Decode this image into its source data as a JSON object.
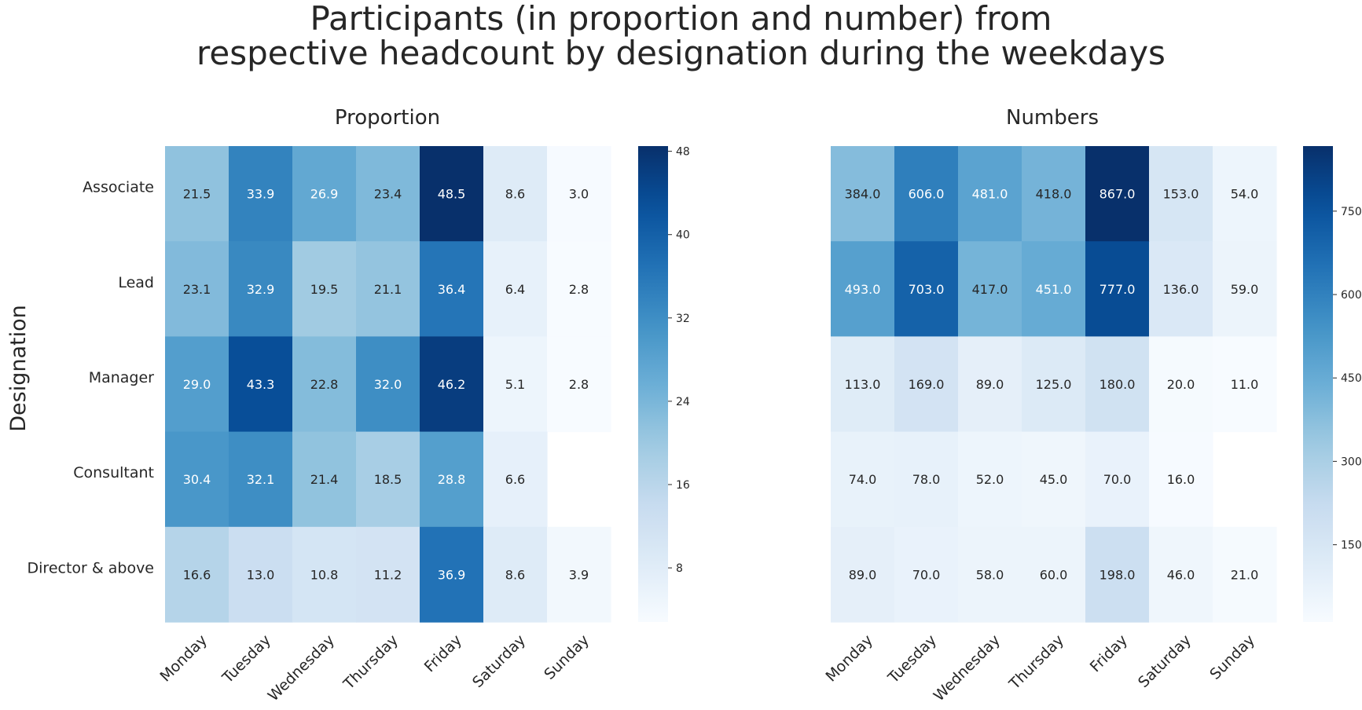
{
  "title": "Participants (in proportion and number) from\nrespective headcount by designation during the weekdays",
  "colors": {
    "low": "#f7fbff",
    "high": "#08306b",
    "text_dark": "#262626",
    "text_light": "#ffffff"
  },
  "chart_data": [
    {
      "type": "heatmap",
      "title": "Proportion",
      "ylabel": "Designation",
      "xlabel": "",
      "x_categories": [
        "Monday",
        "Tuesday",
        "Wednesday",
        "Thursday",
        "Friday",
        "Saturday",
        "Sunday"
      ],
      "y_categories": [
        "Associate",
        "Lead",
        "Manager",
        "Consultant",
        "Director & above"
      ],
      "values": [
        [
          21.5,
          33.9,
          26.9,
          23.4,
          48.5,
          8.6,
          3.0
        ],
        [
          23.1,
          32.9,
          19.5,
          21.1,
          36.4,
          6.4,
          2.8
        ],
        [
          29.0,
          43.3,
          22.8,
          32.0,
          46.2,
          5.1,
          2.8
        ],
        [
          30.4,
          32.1,
          21.4,
          18.5,
          28.8,
          6.6,
          null
        ],
        [
          16.6,
          13.0,
          10.8,
          11.2,
          36.9,
          8.6,
          3.9
        ]
      ],
      "labels": [
        [
          "21.5",
          "33.9",
          "26.9",
          "23.4",
          "48.5",
          "8.6",
          "3.0"
        ],
        [
          "23.1",
          "32.9",
          "19.5",
          "21.1",
          "36.4",
          "6.4",
          "2.8"
        ],
        [
          "29.0",
          "43.3",
          "22.8",
          "32.0",
          "46.2",
          "5.1",
          "2.8"
        ],
        [
          "30.4",
          "32.1",
          "21.4",
          "18.5",
          "28.8",
          "6.6",
          ""
        ],
        [
          "16.6",
          "13.0",
          "10.8",
          "11.2",
          "36.9",
          "8.6",
          "3.9"
        ]
      ],
      "colorbar": {
        "vmin": 2.8,
        "vmax": 48.5,
        "ticks": [
          8,
          16,
          24,
          32,
          40,
          48
        ],
        "tick_labels": [
          "8",
          "16",
          "24",
          "32",
          "40",
          "48"
        ]
      },
      "colormap": "Blues"
    },
    {
      "type": "heatmap",
      "title": "Numbers",
      "ylabel": "",
      "xlabel": "",
      "x_categories": [
        "Monday",
        "Tuesday",
        "Wednesday",
        "Thursday",
        "Friday",
        "Saturday",
        "Sunday"
      ],
      "y_categories": [
        "Associate",
        "Lead",
        "Manager",
        "Consultant",
        "Director & above"
      ],
      "values": [
        [
          384.0,
          606.0,
          481.0,
          418.0,
          867.0,
          153.0,
          54.0
        ],
        [
          493.0,
          703.0,
          417.0,
          451.0,
          777.0,
          136.0,
          59.0
        ],
        [
          113.0,
          169.0,
          89.0,
          125.0,
          180.0,
          20.0,
          11.0
        ],
        [
          74.0,
          78.0,
          52.0,
          45.0,
          70.0,
          16.0,
          null
        ],
        [
          89.0,
          70.0,
          58.0,
          60.0,
          198.0,
          46.0,
          21.0
        ]
      ],
      "labels": [
        [
          "384.0",
          "606.0",
          "481.0",
          "418.0",
          "867.0",
          "153.0",
          "54.0"
        ],
        [
          "493.0",
          "703.0",
          "417.0",
          "451.0",
          "777.0",
          "136.0",
          "59.0"
        ],
        [
          "113.0",
          "169.0",
          "89.0",
          "125.0",
          "180.0",
          "20.0",
          "11.0"
        ],
        [
          "74.0",
          "78.0",
          "52.0",
          "45.0",
          "70.0",
          "16.0",
          ""
        ],
        [
          "89.0",
          "70.0",
          "58.0",
          "60.0",
          "198.0",
          "46.0",
          "21.0"
        ]
      ],
      "colorbar": {
        "vmin": 11.0,
        "vmax": 867.0,
        "ticks": [
          150,
          300,
          450,
          600,
          750
        ],
        "tick_labels": [
          "150",
          "300",
          "450",
          "600",
          "750"
        ]
      },
      "colormap": "Blues"
    }
  ]
}
